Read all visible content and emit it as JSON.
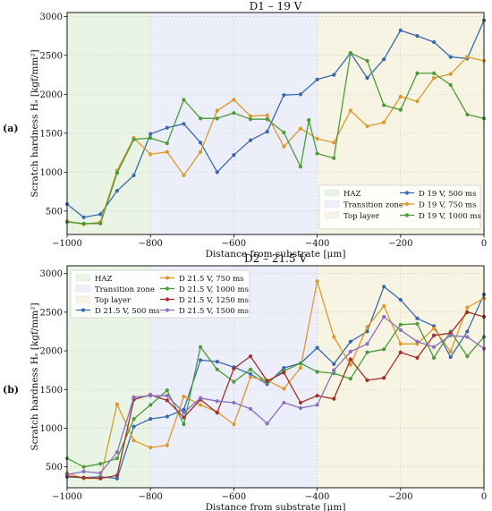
{
  "chart_data": [
    {
      "panel_label": "(a)",
      "title": "D1 – 19 V",
      "type": "line",
      "xlabel": "Distance from substrate [μm]",
      "ylabel": "Scratch hardness Hₛ [kgf/mm²]",
      "xlim": [
        -1000,
        0
      ],
      "ylim": [
        200,
        3050
      ],
      "xticks": [
        -1000,
        -800,
        -600,
        -400,
        -200,
        0
      ],
      "xtick_labels": [
        "−1000",
        "−800",
        "−600",
        "−400",
        "−200",
        "0"
      ],
      "yticks": [
        500,
        1000,
        1500,
        2000,
        2500,
        3000
      ],
      "ytick_labels": [
        "500",
        "1000",
        "1500",
        "2000",
        "2500",
        "3000"
      ],
      "grid": true,
      "legend_position": "lower-right",
      "regions": [
        {
          "name": "HAZ",
          "from": -1000,
          "to": -800,
          "color": "#eaf4e4"
        },
        {
          "name": "Transition zone",
          "from": -800,
          "to": -400,
          "color": "#eceef9"
        },
        {
          "name": "Top layer",
          "from": -400,
          "to": 0,
          "color": "#f8f4e4"
        }
      ],
      "x": [
        -1000,
        -960,
        -920,
        -880,
        -840,
        -800,
        -760,
        -720,
        -680,
        -640,
        -600,
        -560,
        -520,
        -480,
        -440,
        -420,
        -400,
        -360,
        -340,
        -320,
        -280,
        -240,
        -200,
        -160,
        -120,
        -80,
        -40,
        0
      ],
      "series": [
        {
          "name": "D 19 V, 500 ms",
          "color": "#3a69ad",
          "values": [
            590,
            420,
            460,
            760,
            960,
            1490,
            1570,
            1620,
            1380,
            1000,
            1220,
            1410,
            1520,
            1990,
            2000,
            null,
            2190,
            2250,
            null,
            2530,
            2210,
            2450,
            2820,
            2750,
            2670,
            2480,
            2460,
            2950
          ]
        },
        {
          "name": "D 19 V, 750 ms",
          "color": "#dd9a2c",
          "values": [
            370,
            330,
            360,
            1020,
            1440,
            1230,
            1260,
            960,
            1260,
            1790,
            1930,
            1720,
            1730,
            1330,
            1560,
            null,
            1430,
            1380,
            null,
            1790,
            1590,
            1640,
            1970,
            1910,
            2210,
            2260,
            2480,
            2430
          ]
        },
        {
          "name": "D 19 V, 1000 ms",
          "color": "#4d9b3a",
          "values": [
            360,
            340,
            340,
            990,
            1420,
            1440,
            1370,
            1930,
            1690,
            1690,
            1760,
            1680,
            1680,
            1510,
            1070,
            1670,
            1240,
            1180,
            null,
            2530,
            2430,
            1860,
            1800,
            2270,
            2270,
            2120,
            1740,
            1690
          ]
        }
      ]
    },
    {
      "panel_label": "(b)",
      "title": "D2 – 21.5 V",
      "type": "line",
      "xlabel": "Distance from substrate [μm]",
      "ylabel": "Scratch hardness Hₛ [kgf/mm²]",
      "xlim": [
        -1000,
        0
      ],
      "ylim": [
        230,
        3100
      ],
      "xticks": [
        -1000,
        -800,
        -600,
        -400,
        -200,
        0
      ],
      "xtick_labels": [
        "−1000",
        "−800",
        "−600",
        "−400",
        "−200",
        "0"
      ],
      "yticks": [
        500,
        1000,
        1500,
        2000,
        2500,
        3000
      ],
      "ytick_labels": [
        "500",
        "1000",
        "1500",
        "2000",
        "2500",
        "3000"
      ],
      "grid": true,
      "legend_position": "upper-left",
      "regions": [
        {
          "name": "HAZ",
          "from": -1000,
          "to": -800,
          "color": "#eaf4e4"
        },
        {
          "name": "Transition zone",
          "from": -800,
          "to": -400,
          "color": "#eceef9"
        },
        {
          "name": "Top layer",
          "from": -400,
          "to": 0,
          "color": "#f8f4e4"
        }
      ],
      "x": [
        -1000,
        -960,
        -920,
        -880,
        -840,
        -800,
        -760,
        -720,
        -680,
        -640,
        -600,
        -560,
        -520,
        -480,
        -440,
        -400,
        -360,
        -320,
        -280,
        -240,
        -200,
        -160,
        -120,
        -80,
        -40,
        0
      ],
      "series": [
        {
          "name": "D 21.5 V, 500 ms",
          "color": "#3a69ad",
          "values": [
            370,
            360,
            370,
            350,
            1020,
            1120,
            1150,
            1240,
            1880,
            1860,
            1790,
            1700,
            1570,
            1780,
            1840,
            2040,
            1830,
            2120,
            2250,
            2830,
            2660,
            2420,
            2320,
            1920,
            2250,
            2730
          ]
        },
        {
          "name": "D 21.5 V, 750 ms",
          "color": "#dd9a2c",
          "values": [
            420,
            350,
            350,
            1310,
            840,
            750,
            780,
            1410,
            1300,
            1210,
            1050,
            1660,
            1620,
            1510,
            1780,
            2900,
            2180,
            1820,
            2310,
            2580,
            2090,
            2090,
            2290,
            1990,
            2560,
            2680
          ]
        },
        {
          "name": "D 21.5 V, 1000 ms",
          "color": "#4d9b3a",
          "values": [
            610,
            500,
            540,
            610,
            1120,
            1300,
            1490,
            1050,
            2050,
            1760,
            1600,
            1760,
            1590,
            1740,
            1840,
            1730,
            1710,
            1640,
            1980,
            2020,
            2340,
            2350,
            1910,
            2250,
            1930,
            2180
          ]
        },
        {
          "name": "D 21.5 V, 1250 ms",
          "color": "#a0302c",
          "values": [
            380,
            360,
            350,
            390,
            1370,
            1430,
            1360,
            1140,
            1370,
            1200,
            1770,
            1930,
            1610,
            1720,
            1330,
            1420,
            1380,
            1890,
            1620,
            1650,
            1980,
            1910,
            2200,
            2230,
            2500,
            2440
          ]
        },
        {
          "name": "D 21.5 V, 1500 ms",
          "color": "#8a6fbf",
          "values": [
            400,
            440,
            420,
            690,
            1400,
            1420,
            1420,
            1200,
            1390,
            1350,
            1330,
            1250,
            1060,
            1330,
            1260,
            1300,
            1750,
            1990,
            2090,
            2440,
            2270,
            2120,
            2050,
            2200,
            2180,
            2030
          ]
        }
      ]
    }
  ]
}
